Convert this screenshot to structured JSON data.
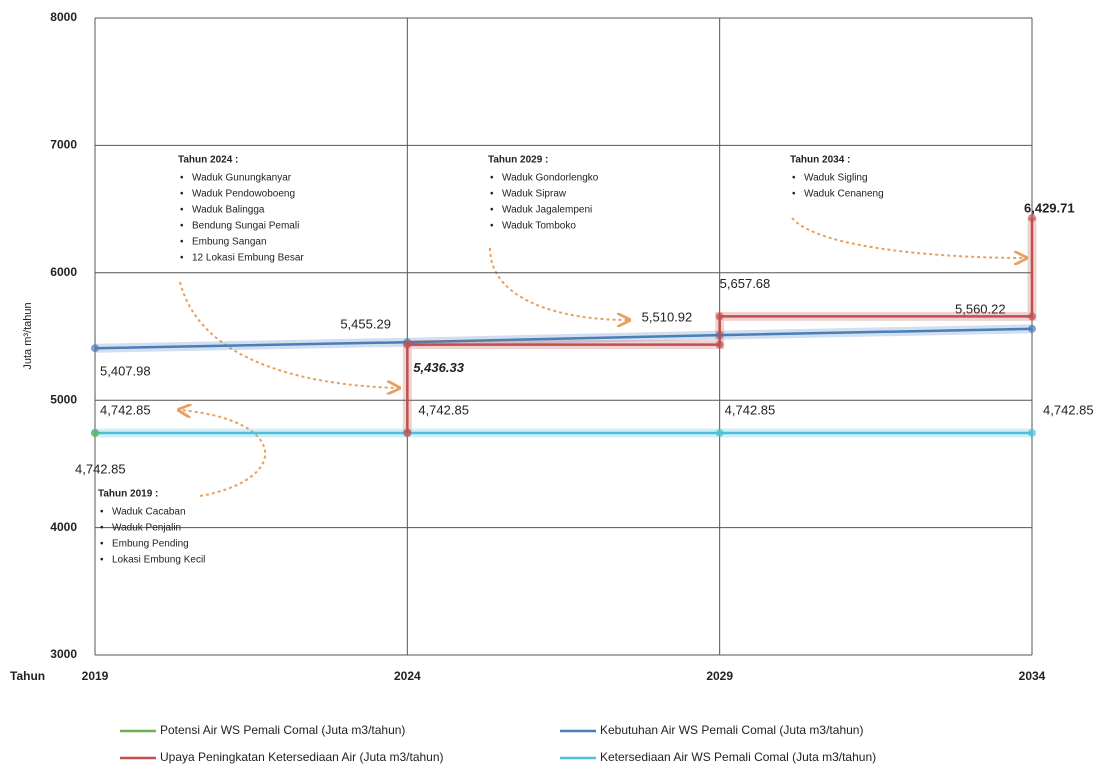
{
  "chart_data": {
    "type": "line",
    "y_label": "Juta m³/tahun",
    "x_label": "Tahun",
    "xlim": [
      2019,
      2034
    ],
    "xticks": [
      2019,
      2024,
      2029,
      2034
    ],
    "ylim": [
      3000,
      8000
    ],
    "yticks": [
      3000,
      4000,
      5000,
      6000,
      7000,
      8000
    ],
    "grid": true,
    "legend": "bottom",
    "series": [
      {
        "name": "Potensi Air WS Pemali Comal (Juta m3/tahun)",
        "color": "#6ab04c",
        "x": [
          2019
        ],
        "values": [
          4742.85
        ],
        "value_labels": [
          "4,742.85"
        ]
      },
      {
        "name": "Kebutuhan Air WS Pemali Comal (Juta m3/tahun)",
        "color": "#4a7ebb",
        "x": [
          2019,
          2024,
          2029,
          2034
        ],
        "values": [
          5407.98,
          5455.29,
          5510.92,
          5560.22
        ],
        "value_labels": [
          "5,407.98",
          "5,455.29",
          "5,510.92",
          "5,560.22"
        ]
      },
      {
        "name": "Upaya Peningkatan Ketersediaan Air (Juta m3/tahun)",
        "color": "#c0504d",
        "x": [
          2024,
          2024,
          2029,
          2029,
          2034,
          2034
        ],
        "values": [
          4742.85,
          5436.33,
          5436.33,
          5657.68,
          5657.68,
          6429.71
        ],
        "value_labels": [
          null,
          "5,436.33",
          null,
          "5,657.68",
          null,
          "6,429.71"
        ]
      },
      {
        "name": "Ketersediaan Air WS Pemali Comal (Juta m3/tahun)",
        "color": "#4bc0da",
        "x": [
          2019,
          2024,
          2029,
          2034
        ],
        "values": [
          4742.85,
          4742.85,
          4742.85,
          4742.85
        ],
        "value_labels": [
          "4,742.85",
          "4,742.85",
          "4,742.85",
          "4,742.85"
        ]
      }
    ],
    "annotations": [
      {
        "title": "Tahun 2024 :",
        "items": [
          "Waduk Gunungkanyar",
          "Waduk Pendowoboeng",
          "Waduk Balingga",
          "Bendung Sungai Pemali",
          "Embung Sangan",
          "12 Lokasi Embung Besar"
        ]
      },
      {
        "title": "Tahun 2029 :",
        "items": [
          "Waduk Gondorlengko",
          "Waduk Sipraw",
          "Waduk Jagalempeni",
          "Waduk Tomboko"
        ]
      },
      {
        "title": "Tahun 2034 :",
        "items": [
          "Waduk Sigling",
          "Waduk Cenaneng"
        ]
      },
      {
        "title": "Tahun 2019 :",
        "items": [
          "Waduk Cacaban",
          "Waduk Penjalin",
          "Embung Pending",
          "Lokasi Embung Kecil"
        ]
      }
    ]
  }
}
